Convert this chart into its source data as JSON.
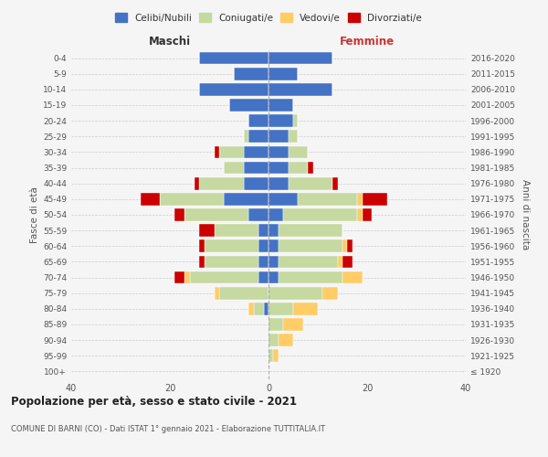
{
  "age_groups": [
    "100+",
    "95-99",
    "90-94",
    "85-89",
    "80-84",
    "75-79",
    "70-74",
    "65-69",
    "60-64",
    "55-59",
    "50-54",
    "45-49",
    "40-44",
    "35-39",
    "30-34",
    "25-29",
    "20-24",
    "15-19",
    "10-14",
    "5-9",
    "0-4"
  ],
  "birth_years": [
    "≤ 1920",
    "1921-1925",
    "1926-1930",
    "1931-1935",
    "1936-1940",
    "1941-1945",
    "1946-1950",
    "1951-1955",
    "1956-1960",
    "1961-1965",
    "1966-1970",
    "1971-1975",
    "1976-1980",
    "1981-1985",
    "1986-1990",
    "1991-1995",
    "1996-2000",
    "2001-2005",
    "2006-2010",
    "2011-2015",
    "2016-2020"
  ],
  "maschi": {
    "celibi": [
      0,
      0,
      0,
      0,
      1,
      0,
      2,
      2,
      2,
      2,
      4,
      9,
      5,
      5,
      5,
      4,
      4,
      8,
      14,
      7,
      14
    ],
    "coniugati": [
      0,
      0,
      0,
      0,
      2,
      10,
      14,
      11,
      11,
      9,
      13,
      13,
      9,
      4,
      5,
      1,
      0,
      0,
      0,
      0,
      0
    ],
    "vedovi": [
      0,
      0,
      0,
      0,
      1,
      1,
      1,
      0,
      0,
      0,
      0,
      0,
      0,
      0,
      0,
      0,
      0,
      0,
      0,
      0,
      0
    ],
    "divorziati": [
      0,
      0,
      0,
      0,
      0,
      0,
      2,
      1,
      1,
      3,
      2,
      4,
      1,
      0,
      1,
      0,
      0,
      0,
      0,
      0,
      0
    ]
  },
  "femmine": {
    "nubili": [
      0,
      0,
      0,
      0,
      0,
      0,
      2,
      2,
      2,
      2,
      3,
      6,
      4,
      4,
      4,
      4,
      5,
      5,
      13,
      6,
      13
    ],
    "coniugate": [
      0,
      1,
      2,
      3,
      5,
      11,
      13,
      12,
      13,
      13,
      15,
      12,
      9,
      4,
      4,
      2,
      1,
      0,
      0,
      0,
      0
    ],
    "vedove": [
      0,
      1,
      3,
      4,
      5,
      3,
      4,
      1,
      1,
      0,
      1,
      1,
      0,
      0,
      0,
      0,
      0,
      0,
      0,
      0,
      0
    ],
    "divorziate": [
      0,
      0,
      0,
      0,
      0,
      0,
      0,
      2,
      1,
      0,
      2,
      5,
      1,
      1,
      0,
      0,
      0,
      0,
      0,
      0,
      0
    ]
  },
  "colors": {
    "celibi": "#4472C4",
    "coniugati": "#C5D9A0",
    "vedovi": "#FFCC66",
    "divorziati": "#CC0000"
  },
  "title": "Popolazione per età, sesso e stato civile - 2021",
  "subtitle": "COMUNE DI BARNI (CO) - Dati ISTAT 1° gennaio 2021 - Elaborazione TUTTITALIA.IT",
  "xlabel_left": "Maschi",
  "xlabel_right": "Femmine",
  "ylabel_left": "Fasce di età",
  "ylabel_right": "Anni di nascita",
  "xlim": 40,
  "background_color": "#f5f5f5",
  "legend_labels": [
    "Celibi/Nubili",
    "Coniugati/e",
    "Vedovi/e",
    "Divorziati/e"
  ]
}
